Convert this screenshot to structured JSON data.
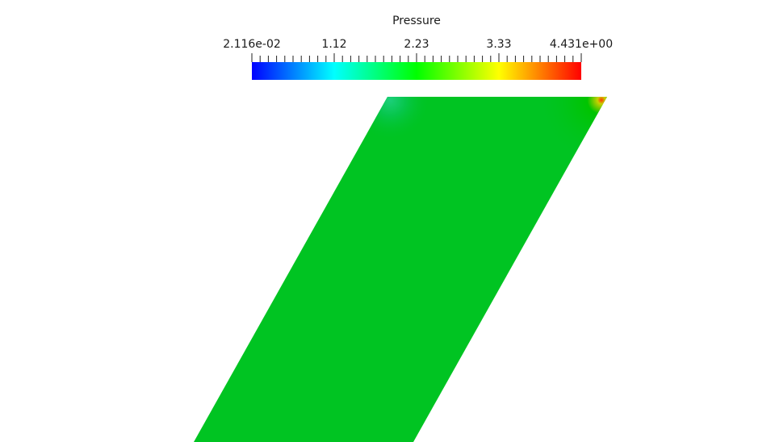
{
  "colorbar": {
    "title": "Pressure",
    "range": [
      0.02116,
      4.431
    ],
    "labels": {
      "min": "2.116e-02",
      "t1": "1.12",
      "t2": "2.23",
      "t3": "3.33",
      "max": "4.431e+00"
    },
    "colormap": [
      "#0000ff",
      "#00ffff",
      "#00ff00",
      "#ffff00",
      "#ff0000"
    ]
  },
  "surface": {
    "field": "Pressure",
    "dominant_value_color": "#00c422"
  }
}
